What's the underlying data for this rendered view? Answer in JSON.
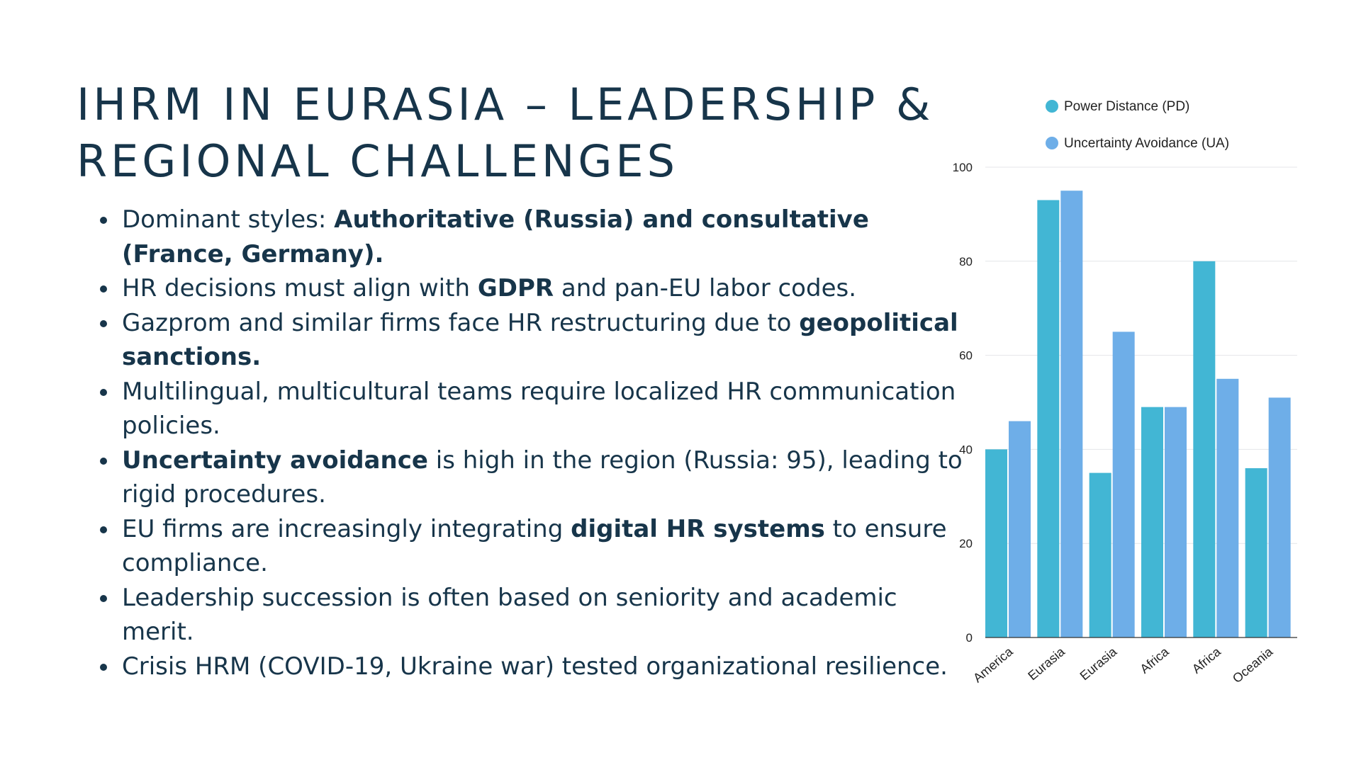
{
  "slide": {
    "title_line1": "IHRM IN EURASIA – LEADERSHIP &",
    "title_line2": "REGIONAL CHALLENGES",
    "bullets": [
      [
        {
          "t": "Dominant styles: "
        },
        {
          "t": "Authoritative (Russia) and consultative (France, Germany).",
          "b": true
        }
      ],
      [
        {
          "t": "HR decisions must align with "
        },
        {
          "t": "GDPR",
          "b": true
        },
        {
          "t": " and pan-EU labor codes."
        }
      ],
      [
        {
          "t": "Gazprom and similar firms face HR restructuring due to "
        },
        {
          "t": "geopolitical sanctions.",
          "b": true
        }
      ],
      [
        {
          "t": "Multilingual, multicultural teams require localized HR communication policies."
        }
      ],
      [
        {
          "t": "Uncertainty avoidance",
          "b": true
        },
        {
          "t": " is high in the region (Russia: 95), leading to rigid procedures."
        }
      ],
      [
        {
          "t": "EU firms are increasingly integrating "
        },
        {
          "t": "digital HR systems",
          "b": true
        },
        {
          "t": " to ensure compliance."
        }
      ],
      [
        {
          "t": "Leadership succession is often based on seniority and academic merit."
        }
      ],
      [
        {
          "t": "Crisis HRM (COVID-19, Ukraine war) tested organizational resilience."
        }
      ]
    ]
  },
  "colors": {
    "text": "#17354a",
    "series_pd": "#42b6d4",
    "series_ua": "#6eaee8",
    "grid": "#e4e6e8",
    "axis": "#333333"
  },
  "chart_data": {
    "type": "bar",
    "categories": [
      "America",
      "Eurasia",
      "Eurasia",
      "Africa",
      "Africa",
      "Oceania"
    ],
    "series": [
      {
        "name": "Power Distance (PD)",
        "values": [
          40,
          93,
          35,
          49,
          80,
          36
        ]
      },
      {
        "name": "Uncertainty Avoidance (UA)",
        "values": [
          46,
          95,
          65,
          49,
          55,
          51
        ]
      }
    ],
    "title": "",
    "xlabel": "",
    "ylabel": "",
    "ylim": [
      0,
      100
    ],
    "yticks": [
      0,
      20,
      40,
      60,
      80,
      100
    ],
    "grid": true,
    "legend": "top"
  }
}
